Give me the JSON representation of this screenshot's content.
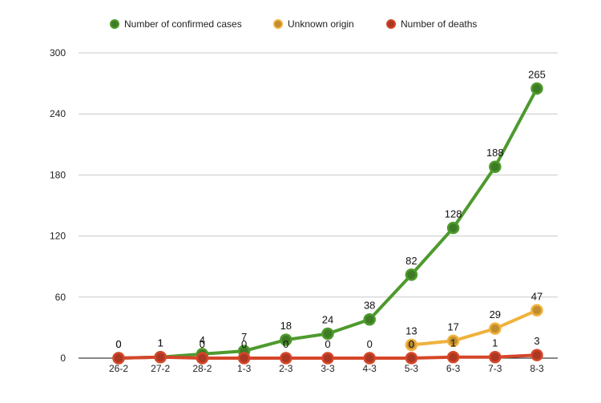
{
  "chart_data": {
    "type": "line",
    "categories": [
      "26-2",
      "27-2",
      "28-2",
      "1-3",
      "2-3",
      "3-3",
      "4-3",
      "5-3",
      "6-3",
      "7-3",
      "8-3"
    ],
    "series": [
      {
        "name": "Number of confirmed cases",
        "color": "#4e9a2e",
        "values": [
          0,
          1,
          4,
          7,
          18,
          24,
          38,
          82,
          128,
          188,
          265
        ]
      },
      {
        "name": "Unknown origin",
        "color": "#f0b23c",
        "values": [
          null,
          null,
          null,
          null,
          null,
          null,
          null,
          13,
          17,
          29,
          47
        ]
      },
      {
        "name": "Number of deaths",
        "color": "#d6462a",
        "values": [
          0,
          1,
          0,
          0,
          0,
          0,
          0,
          0,
          1,
          1,
          3
        ]
      }
    ],
    "ylim": [
      0,
      300
    ],
    "yticks": [
      0,
      60,
      120,
      180,
      240,
      300
    ],
    "grid": true,
    "legend": "top-center",
    "title": "",
    "xlabel": "",
    "ylabel": ""
  }
}
